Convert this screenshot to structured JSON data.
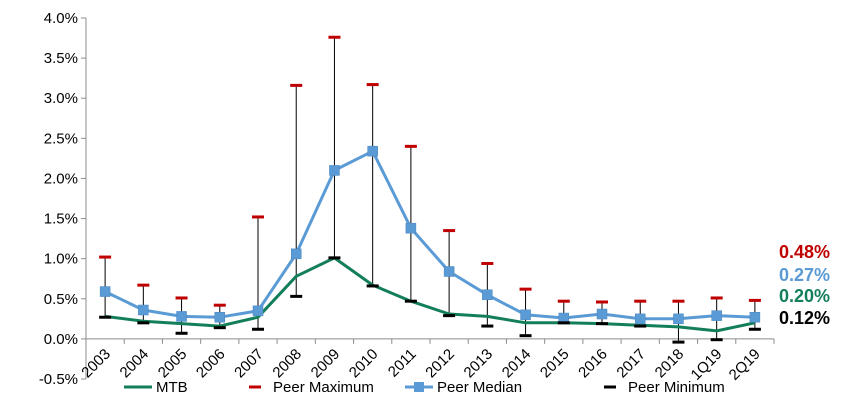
{
  "chart_data": {
    "type": "line",
    "title": "",
    "xlabel": "",
    "ylabel": "",
    "ylim": [
      -0.5,
      4.0
    ],
    "y_ticks": [
      "-0.5%",
      "0.0%",
      "0.5%",
      "1.0%",
      "1.5%",
      "2.0%",
      "2.5%",
      "3.0%",
      "3.5%",
      "4.0%"
    ],
    "categories": [
      "2003",
      "2004",
      "2005",
      "2006",
      "2007",
      "2008",
      "2009",
      "2010",
      "2011",
      "2012",
      "2013",
      "2014",
      "2015",
      "2016",
      "2017",
      "2018",
      "1Q19",
      "2Q19"
    ],
    "series": [
      {
        "name": "MTB",
        "style": "line",
        "color": "#137F5A",
        "values": [
          0.28,
          0.22,
          0.19,
          0.16,
          0.27,
          0.78,
          1.01,
          0.67,
          0.47,
          0.31,
          0.28,
          0.2,
          0.2,
          0.19,
          0.17,
          0.15,
          0.1,
          0.2
        ]
      },
      {
        "name": "Peer Maximum",
        "style": "marker-dash",
        "color": "#C00000",
        "values": [
          1.02,
          0.67,
          0.51,
          0.42,
          1.52,
          3.16,
          3.76,
          3.17,
          2.4,
          1.35,
          0.94,
          0.62,
          0.47,
          0.46,
          0.47,
          0.47,
          0.51,
          0.48
        ]
      },
      {
        "name": "Peer Median",
        "style": "line-square",
        "color": "#5B9BD5",
        "values": [
          0.59,
          0.36,
          0.28,
          0.27,
          0.35,
          1.06,
          2.1,
          2.34,
          1.38,
          0.84,
          0.55,
          0.3,
          0.26,
          0.31,
          0.25,
          0.25,
          0.29,
          0.27
        ]
      },
      {
        "name": "Peer Minimum",
        "style": "marker-dash",
        "color": "#000000",
        "values": [
          0.27,
          0.2,
          0.07,
          0.14,
          0.12,
          0.53,
          1.01,
          0.66,
          0.47,
          0.29,
          0.16,
          0.04,
          0.2,
          0.19,
          0.16,
          -0.04,
          -0.01,
          0.12
        ]
      }
    ],
    "end_labels": [
      {
        "text": "0.48%",
        "color": "#C00000"
      },
      {
        "text": "0.27%",
        "color": "#5B9BD5"
      },
      {
        "text": "0.20%",
        "color": "#137F5A"
      },
      {
        "text": "0.12%",
        "color": "#000000"
      }
    ],
    "grid": false,
    "legend_position": "bottom"
  }
}
